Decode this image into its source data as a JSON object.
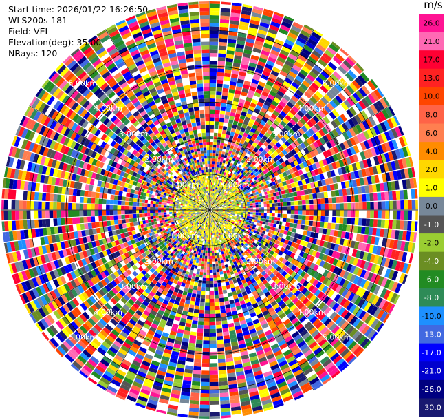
{
  "header": {
    "start_time": "Start time: 2026/01/22 16:26:50",
    "instrument": "WLS200s-181",
    "field": "Field: VEL",
    "elevation": "Elevation(deg): 35.00",
    "nrays": "NRays: 120"
  },
  "colorbar": {
    "unit": "m/s",
    "levels": [
      "26.0",
      "21.0",
      "17.0",
      "13.0",
      "10.0",
      "8.0",
      "6.0",
      "4.0",
      "2.0",
      "1.0",
      "0.0",
      "-1.0",
      "-2.0",
      "-4.0",
      "-6.0",
      "-8.0",
      "-10.0",
      "-13.0",
      "-17.0",
      "-21.0",
      "-26.0",
      "-30.0"
    ],
    "colors": [
      "#ff1493",
      "#ff69b4",
      "#ff0033",
      "#ff2222",
      "#ff4500",
      "#ff6347",
      "#ff7f50",
      "#ff8c00",
      "#ffd700",
      "#ffff00",
      "#778899",
      "#555555",
      "#9acd32",
      "#6b8e23",
      "#228b22",
      "#2e8b57",
      "#1e90ff",
      "#4169e1",
      "#0000ff",
      "#0000cd",
      "#000080",
      "#191970"
    ]
  },
  "chart_data": {
    "type": "ppi",
    "field": "VEL",
    "nrays": 120,
    "elevation_deg": 35.0,
    "range_rings_km": [
      1.0,
      2.0,
      3.0,
      4.0,
      5.0
    ],
    "ring_labels": [
      "1.00km",
      "2.00km",
      "3.00km",
      "4.00km",
      "5.00km"
    ],
    "max_range_km": 5.8,
    "spoke_step_deg": 30,
    "inner_region_km": 1.0,
    "inner_colors": [
      "#ffd700",
      "#9acd32",
      "#778899",
      "#ffff00"
    ]
  }
}
